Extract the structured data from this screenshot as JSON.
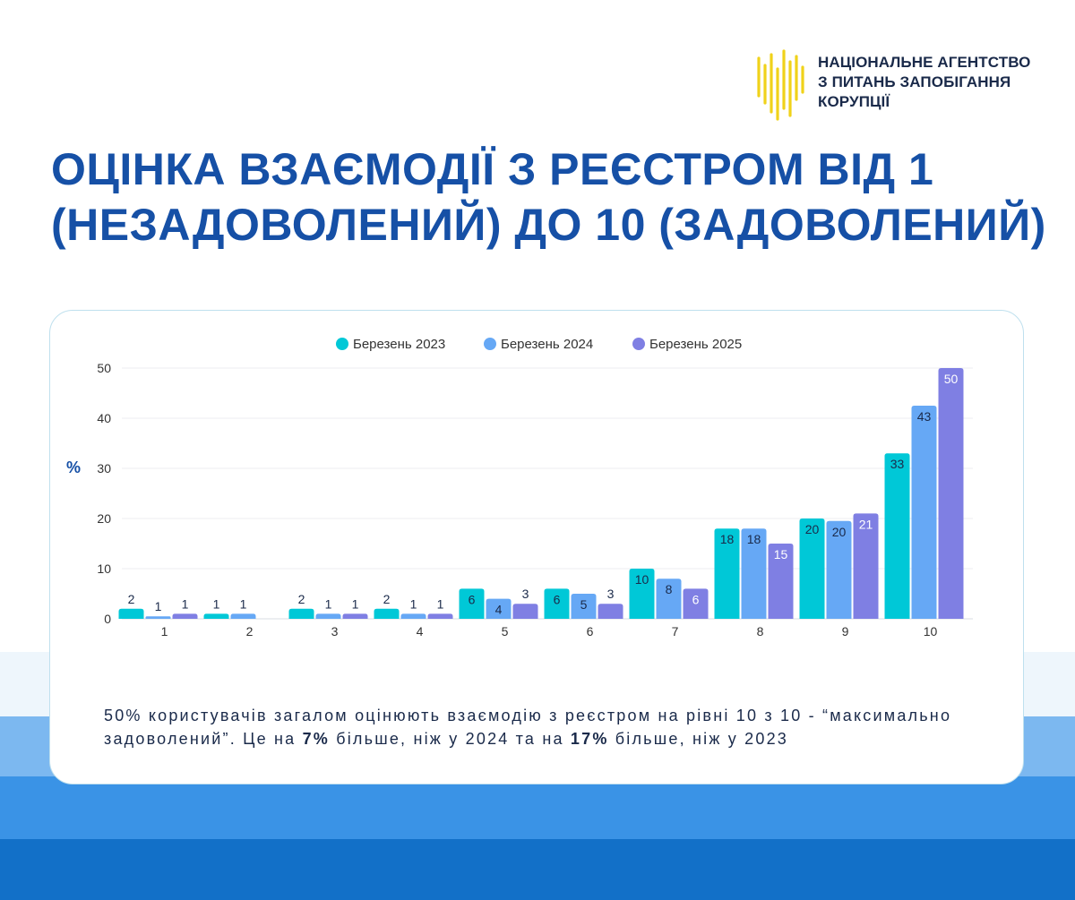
{
  "org": {
    "name_lines": [
      "НАЦІОНАЛЬНЕ АГЕНТСТВО",
      "З ПИТАНЬ ЗАПОБІГАННЯ",
      "КОРУПЦІЇ"
    ],
    "logo_color": "#f0d21a"
  },
  "title_lines": [
    "ОЦІНКА ВЗАЄМОДІЇ З РЕЄСТРОМ ВІД 1",
    "(НЕЗАДОВОЛЕНИЙ) ДО 10 (ЗАДОВОЛЕНИЙ)"
  ],
  "chart_data": {
    "type": "bar",
    "title": "",
    "xlabel": "",
    "ylabel": "%",
    "ylim": [
      0,
      50
    ],
    "yticks": [
      0,
      10,
      20,
      30,
      40,
      50
    ],
    "grid": true,
    "legend_position": "top-center",
    "categories": [
      "1",
      "2",
      "3",
      "4",
      "5",
      "6",
      "7",
      "8",
      "9",
      "10"
    ],
    "series": [
      {
        "name": "Березень 2023",
        "color": "#00c8d7",
        "values": [
          2,
          1,
          2,
          2,
          6,
          6,
          10,
          18,
          20,
          33
        ]
      },
      {
        "name": "Березень 2024",
        "color": "#66a8f5",
        "values": [
          0.5,
          1,
          1,
          1,
          4,
          5,
          8,
          18,
          19.5,
          42.5
        ]
      },
      {
        "name": "Березень 2025",
        "color": "#7f7fe3",
        "values": [
          1,
          null,
          1,
          1,
          3,
          3,
          6,
          15,
          21,
          50
        ]
      }
    ],
    "data_labels": [
      [
        "2",
        "1",
        "2",
        "2",
        "6",
        "6",
        "10",
        "18",
        "20",
        "33"
      ],
      [
        "1",
        "1",
        "1",
        "1",
        "4",
        "5",
        "8",
        "18",
        "20",
        "43"
      ],
      [
        "1",
        "",
        "1",
        "1",
        "3",
        "3",
        "6",
        "15",
        "21",
        "50"
      ]
    ]
  },
  "caption": {
    "part1": "50% користувачів загалом оцінюють взаємодію з реєстром на рівні 10 з 10 - “максимально задоволений”. Це на ",
    "bold1": "7%",
    "part2": " більше, ніж у 2024 та на ",
    "bold2": "17%",
    "part3": " більше, ніж у 2023"
  }
}
